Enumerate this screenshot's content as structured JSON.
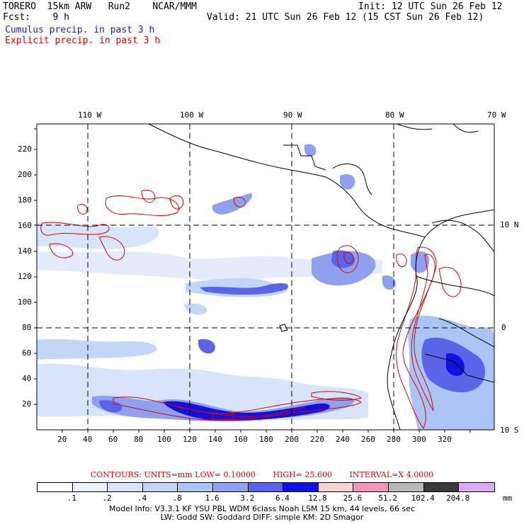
{
  "header": {
    "model": "TORERO  15km ARW   Run2    NCAR/MMM",
    "init": "Init: 12 UTC Sun 26 Feb 12",
    "fcst": "Fcst:    9 h",
    "valid": "Valid: 21 UTC Sun 26 Feb 12 (15 CST Sun 26 Feb 12)",
    "line_cumulus": "Cumulus precip. in past 3 h",
    "line_explicit": "Explicit precip. in past 3 h"
  },
  "colors": {
    "cumulus_text": "#1a1acc",
    "explicit_text": "#dd0000",
    "contour": "#dd0000",
    "coast": "#000000"
  },
  "map": {
    "lon_labels": [
      "110 W",
      "100 W",
      "90 W",
      "80 W",
      "70 W"
    ],
    "lat_labels": [
      "10 N",
      "0",
      "10 S"
    ],
    "x_ticks": [
      "20",
      "40",
      "60",
      "80",
      "100",
      "120",
      "140",
      "160",
      "180",
      "200",
      "220",
      "240",
      "260",
      "280",
      "300",
      "320"
    ],
    "y_ticks": [
      "20",
      "40",
      "60",
      "80",
      "100",
      "120",
      "140",
      "160",
      "180",
      "200",
      "220"
    ]
  },
  "contour_info": {
    "units": "CONTOURS:  UNITS=mm   LOW= 0.10000",
    "high": "HIGH=  25.600",
    "interval": "INTERVAL=X  4.0000"
  },
  "legend": {
    "labels": [
      ".1",
      ".2",
      ".4",
      ".8",
      "1.6",
      "3.2",
      "6.4",
      "12.8",
      "25.6",
      "51.2",
      "102.4",
      "204.8"
    ],
    "unit": "mm",
    "colors": [
      "#ffffff",
      "#eef2fb",
      "#d8e4fa",
      "#c4d6f8",
      "#aac4f4",
      "#8ea0ee",
      "#5a64e8",
      "#1010e0",
      "#fbd0d0",
      "#f593b8",
      "#b9b9b9",
      "#3a3a3a",
      "#d8aef7"
    ]
  },
  "info": {
    "line1": "Model Info: V3.3.1    KF     YSU PBL   WDM 6class   Noah LSM   15 km,    44 levels,    66 sec",
    "line2": "LW: Godd SW: Goddard DIFF: simple KM: 2D Smagor"
  }
}
